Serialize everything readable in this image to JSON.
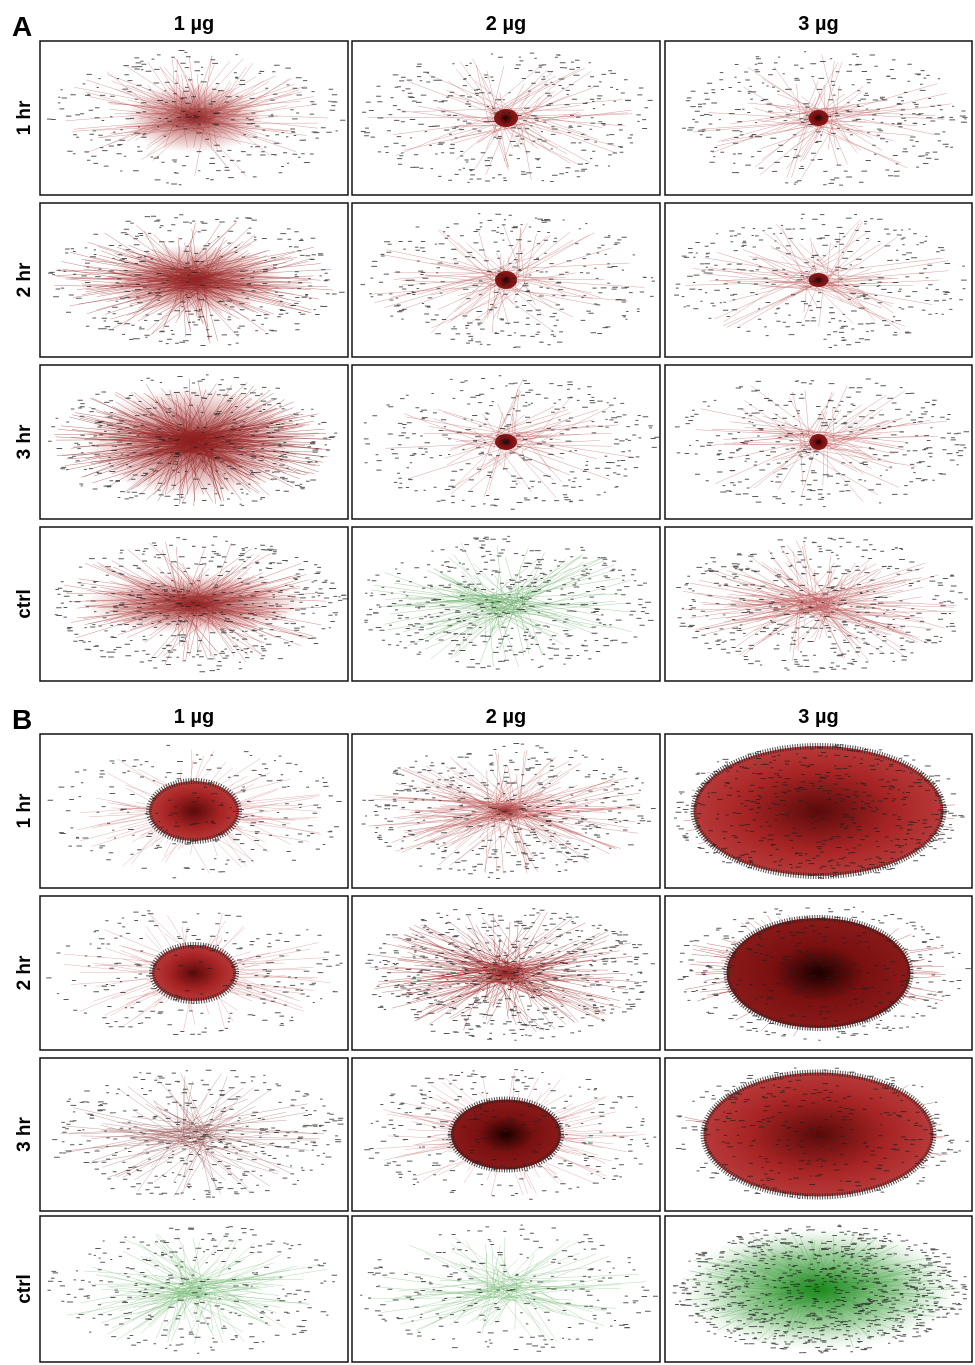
{
  "panels": [
    {
      "label": "A",
      "columns": [
        "1 µg",
        "2 µg",
        "3 µg"
      ],
      "rows": [
        "1 hr",
        "2 hr",
        "3 hr",
        "ctrl"
      ]
    },
    {
      "label": "B",
      "columns": [
        "1 µg",
        "2 µg",
        "3 µg"
      ],
      "rows": [
        "1 hr",
        "2 hr",
        "3 hr",
        "ctrl"
      ]
    }
  ]
}
